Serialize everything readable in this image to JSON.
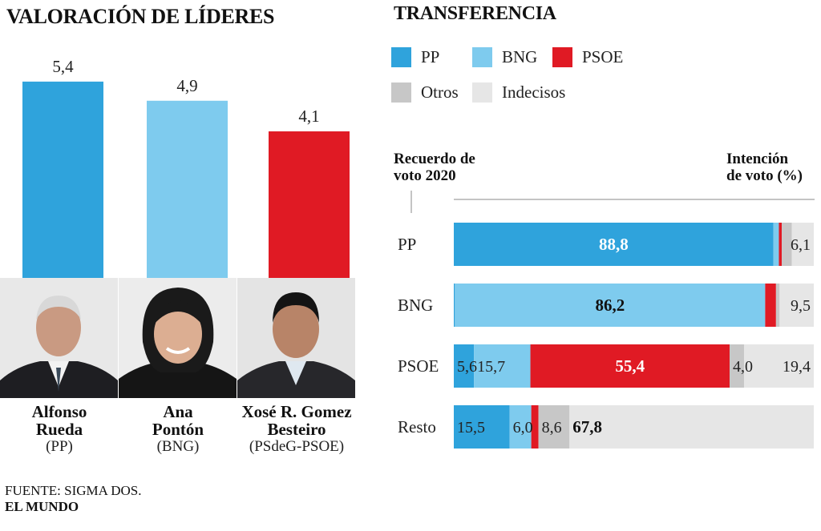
{
  "left": {
    "title": "VALORACIÓN DE LÍDERES",
    "leaders": [
      {
        "first": "Alfonso",
        "last": "Rueda",
        "party": "(PP)"
      },
      {
        "first": "Ana",
        "last": "Pontón",
        "party": "(BNG)"
      },
      {
        "first": "Xosé R. Gomez",
        "last": "Besteiro",
        "party": "(PSdeG-PSOE)"
      }
    ]
  },
  "right": {
    "title": "TRANSFERENCIA",
    "legend": [
      {
        "label": "PP",
        "color": "#2fa3dc"
      },
      {
        "label": "BNG",
        "color": "#7ecbee"
      },
      {
        "label": "PSOE",
        "color": "#e01a24"
      },
      {
        "label": "Otros",
        "color": "#c7c7c7"
      },
      {
        "label": "Indecisos",
        "color": "#e6e6e6"
      }
    ],
    "header_left": [
      "Recuerdo de",
      "voto 2020"
    ],
    "header_right": [
      "Intención",
      "de voto (%)"
    ]
  },
  "source": {
    "text": "FUENTE: SIGMA DOS.",
    "brand": "EL MUNDO"
  },
  "colors": {
    "PP": "#2fa3dc",
    "BNG": "#7ecbee",
    "PSOE": "#e01a24",
    "Otros": "#c7c7c7",
    "Indecisos": "#e6e6e6"
  },
  "chart_data": [
    {
      "type": "bar",
      "title": "VALORACIÓN DE LÍDERES",
      "categories": [
        "Alfonso Rueda (PP)",
        "Ana Pontón (BNG)",
        "Xosé R. Gomez Besteiro (PSdeG-PSOE)"
      ],
      "values": [
        5.4,
        4.9,
        4.1
      ],
      "value_labels": [
        "5,4",
        "4,9",
        "4,1"
      ],
      "colors": [
        "#2fa3dc",
        "#7ecbee",
        "#e01a24"
      ]
    },
    {
      "type": "bar",
      "stacked": true,
      "orientation": "horizontal",
      "title": "TRANSFERENCIA",
      "xlabel": "Intención de voto (%)",
      "ylabel": "Recuerdo de voto 2020",
      "categories": [
        "PP",
        "BNG",
        "PSOE",
        "Resto"
      ],
      "series": [
        {
          "name": "PP",
          "values": [
            88.8,
            0.3,
            5.6,
            15.5
          ],
          "labels": [
            "88,8",
            "",
            "5,6",
            "15,5"
          ]
        },
        {
          "name": "BNG",
          "values": [
            1.5,
            86.2,
            15.7,
            6.0
          ],
          "labels": [
            "",
            "86,2",
            "15,7",
            "6,0"
          ]
        },
        {
          "name": "PSOE",
          "values": [
            0.8,
            3.0,
            55.4,
            2.0
          ],
          "labels": [
            "",
            "",
            "55,4",
            ""
          ]
        },
        {
          "name": "Otros",
          "values": [
            2.8,
            1.0,
            4.0,
            8.6
          ],
          "labels": [
            "",
            "",
            "4,0",
            "8,6"
          ]
        },
        {
          "name": "Indecisos",
          "values": [
            6.1,
            9.5,
            19.4,
            67.8
          ],
          "labels": [
            "6,1",
            "9,5",
            "19,4",
            "67,8"
          ]
        }
      ]
    }
  ]
}
